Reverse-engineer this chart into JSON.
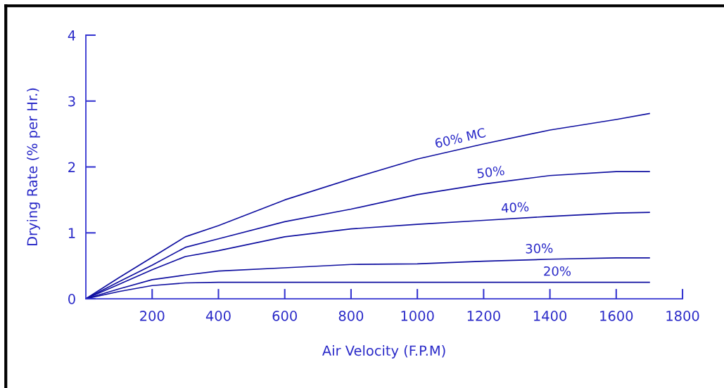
{
  "chart_data": {
    "type": "line",
    "xlabel": "Air Velocity (F.P.M)",
    "ylabel": "Drying Rate (% per Hr.)",
    "x": [
      0,
      100,
      200,
      300,
      400,
      600,
      800,
      1000,
      1200,
      1400,
      1600,
      1700
    ],
    "series": [
      {
        "name": "60% MC",
        "color": "#1010a0",
        "values": [
          0,
          0.32,
          0.63,
          0.94,
          1.11,
          1.5,
          1.82,
          2.12,
          2.35,
          2.56,
          2.72,
          2.81
        ]
      },
      {
        "name": "50%",
        "color": "#1010a0",
        "values": [
          0,
          0.26,
          0.51,
          0.78,
          0.91,
          1.17,
          1.36,
          1.58,
          1.74,
          1.87,
          1.93,
          1.93
        ]
      },
      {
        "name": "40%",
        "color": "#1010a0",
        "values": [
          0,
          0.22,
          0.44,
          0.64,
          0.73,
          0.94,
          1.06,
          1.13,
          1.19,
          1.25,
          1.3,
          1.31
        ]
      },
      {
        "name": "30%",
        "color": "#1010a0",
        "values": [
          0,
          0.15,
          0.29,
          0.36,
          0.42,
          0.47,
          0.52,
          0.53,
          0.57,
          0.6,
          0.62,
          0.62
        ]
      },
      {
        "name": "20%",
        "color": "#1010a0",
        "values": [
          0,
          0.11,
          0.2,
          0.24,
          0.25,
          0.25,
          0.25,
          0.25,
          0.25,
          0.25,
          0.25,
          0.25
        ]
      }
    ],
    "xlim": [
      0,
      1800
    ],
    "xticks": [
      200,
      400,
      600,
      800,
      1000,
      1200,
      1400,
      1600,
      1800
    ],
    "ylim": [
      0,
      4
    ],
    "yticks": [
      0,
      1,
      2,
      3,
      4
    ],
    "grid": false,
    "legend": false,
    "marker": "none",
    "line_style": "solid"
  }
}
